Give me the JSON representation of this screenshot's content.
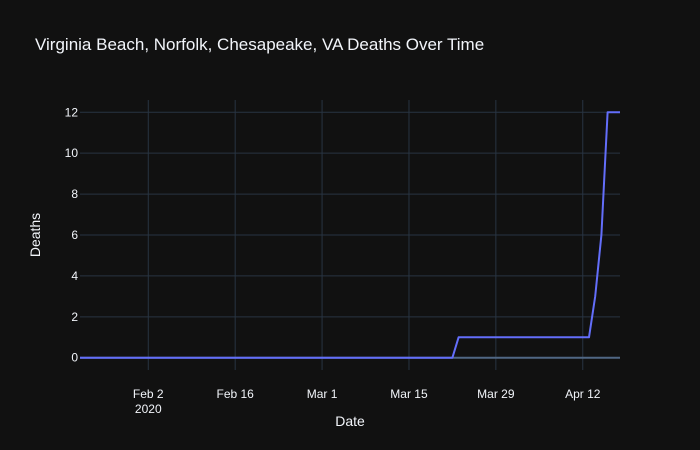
{
  "chart_data": {
    "type": "line",
    "title": "Virginia Beach, Norfolk, Chesapeake, VA Deaths Over Time",
    "xlabel": "Date",
    "ylabel": "Deaths",
    "xlim": [
      "2020-01-22",
      "2020-04-18"
    ],
    "ylim": [
      -0.6,
      12.6
    ],
    "x_ticks": [
      {
        "date": "2020-02-02",
        "label": "Feb 2",
        "sublabel": "2020"
      },
      {
        "date": "2020-02-16",
        "label": "Feb 16",
        "sublabel": ""
      },
      {
        "date": "2020-03-01",
        "label": "Mar 1",
        "sublabel": ""
      },
      {
        "date": "2020-03-15",
        "label": "Mar 15",
        "sublabel": ""
      },
      {
        "date": "2020-03-29",
        "label": "Mar 29",
        "sublabel": ""
      },
      {
        "date": "2020-04-12",
        "label": "Apr 12",
        "sublabel": ""
      }
    ],
    "y_ticks": [
      0,
      2,
      4,
      6,
      8,
      10,
      12
    ],
    "grid": true,
    "colors": {
      "background": "#111111",
      "grid": "#283442",
      "zeroline": "#506784",
      "line": "#636efa",
      "text": "#f2f5fa"
    },
    "series": [
      {
        "x": [
          "2020-01-22",
          "2020-03-22",
          "2020-03-23",
          "2020-04-12",
          "2020-04-13",
          "2020-04-14",
          "2020-04-15",
          "2020-04-16",
          "2020-04-17",
          "2020-04-18"
        ],
        "y": [
          0,
          0,
          1,
          1,
          1,
          3,
          6,
          12,
          12,
          12
        ]
      }
    ]
  }
}
